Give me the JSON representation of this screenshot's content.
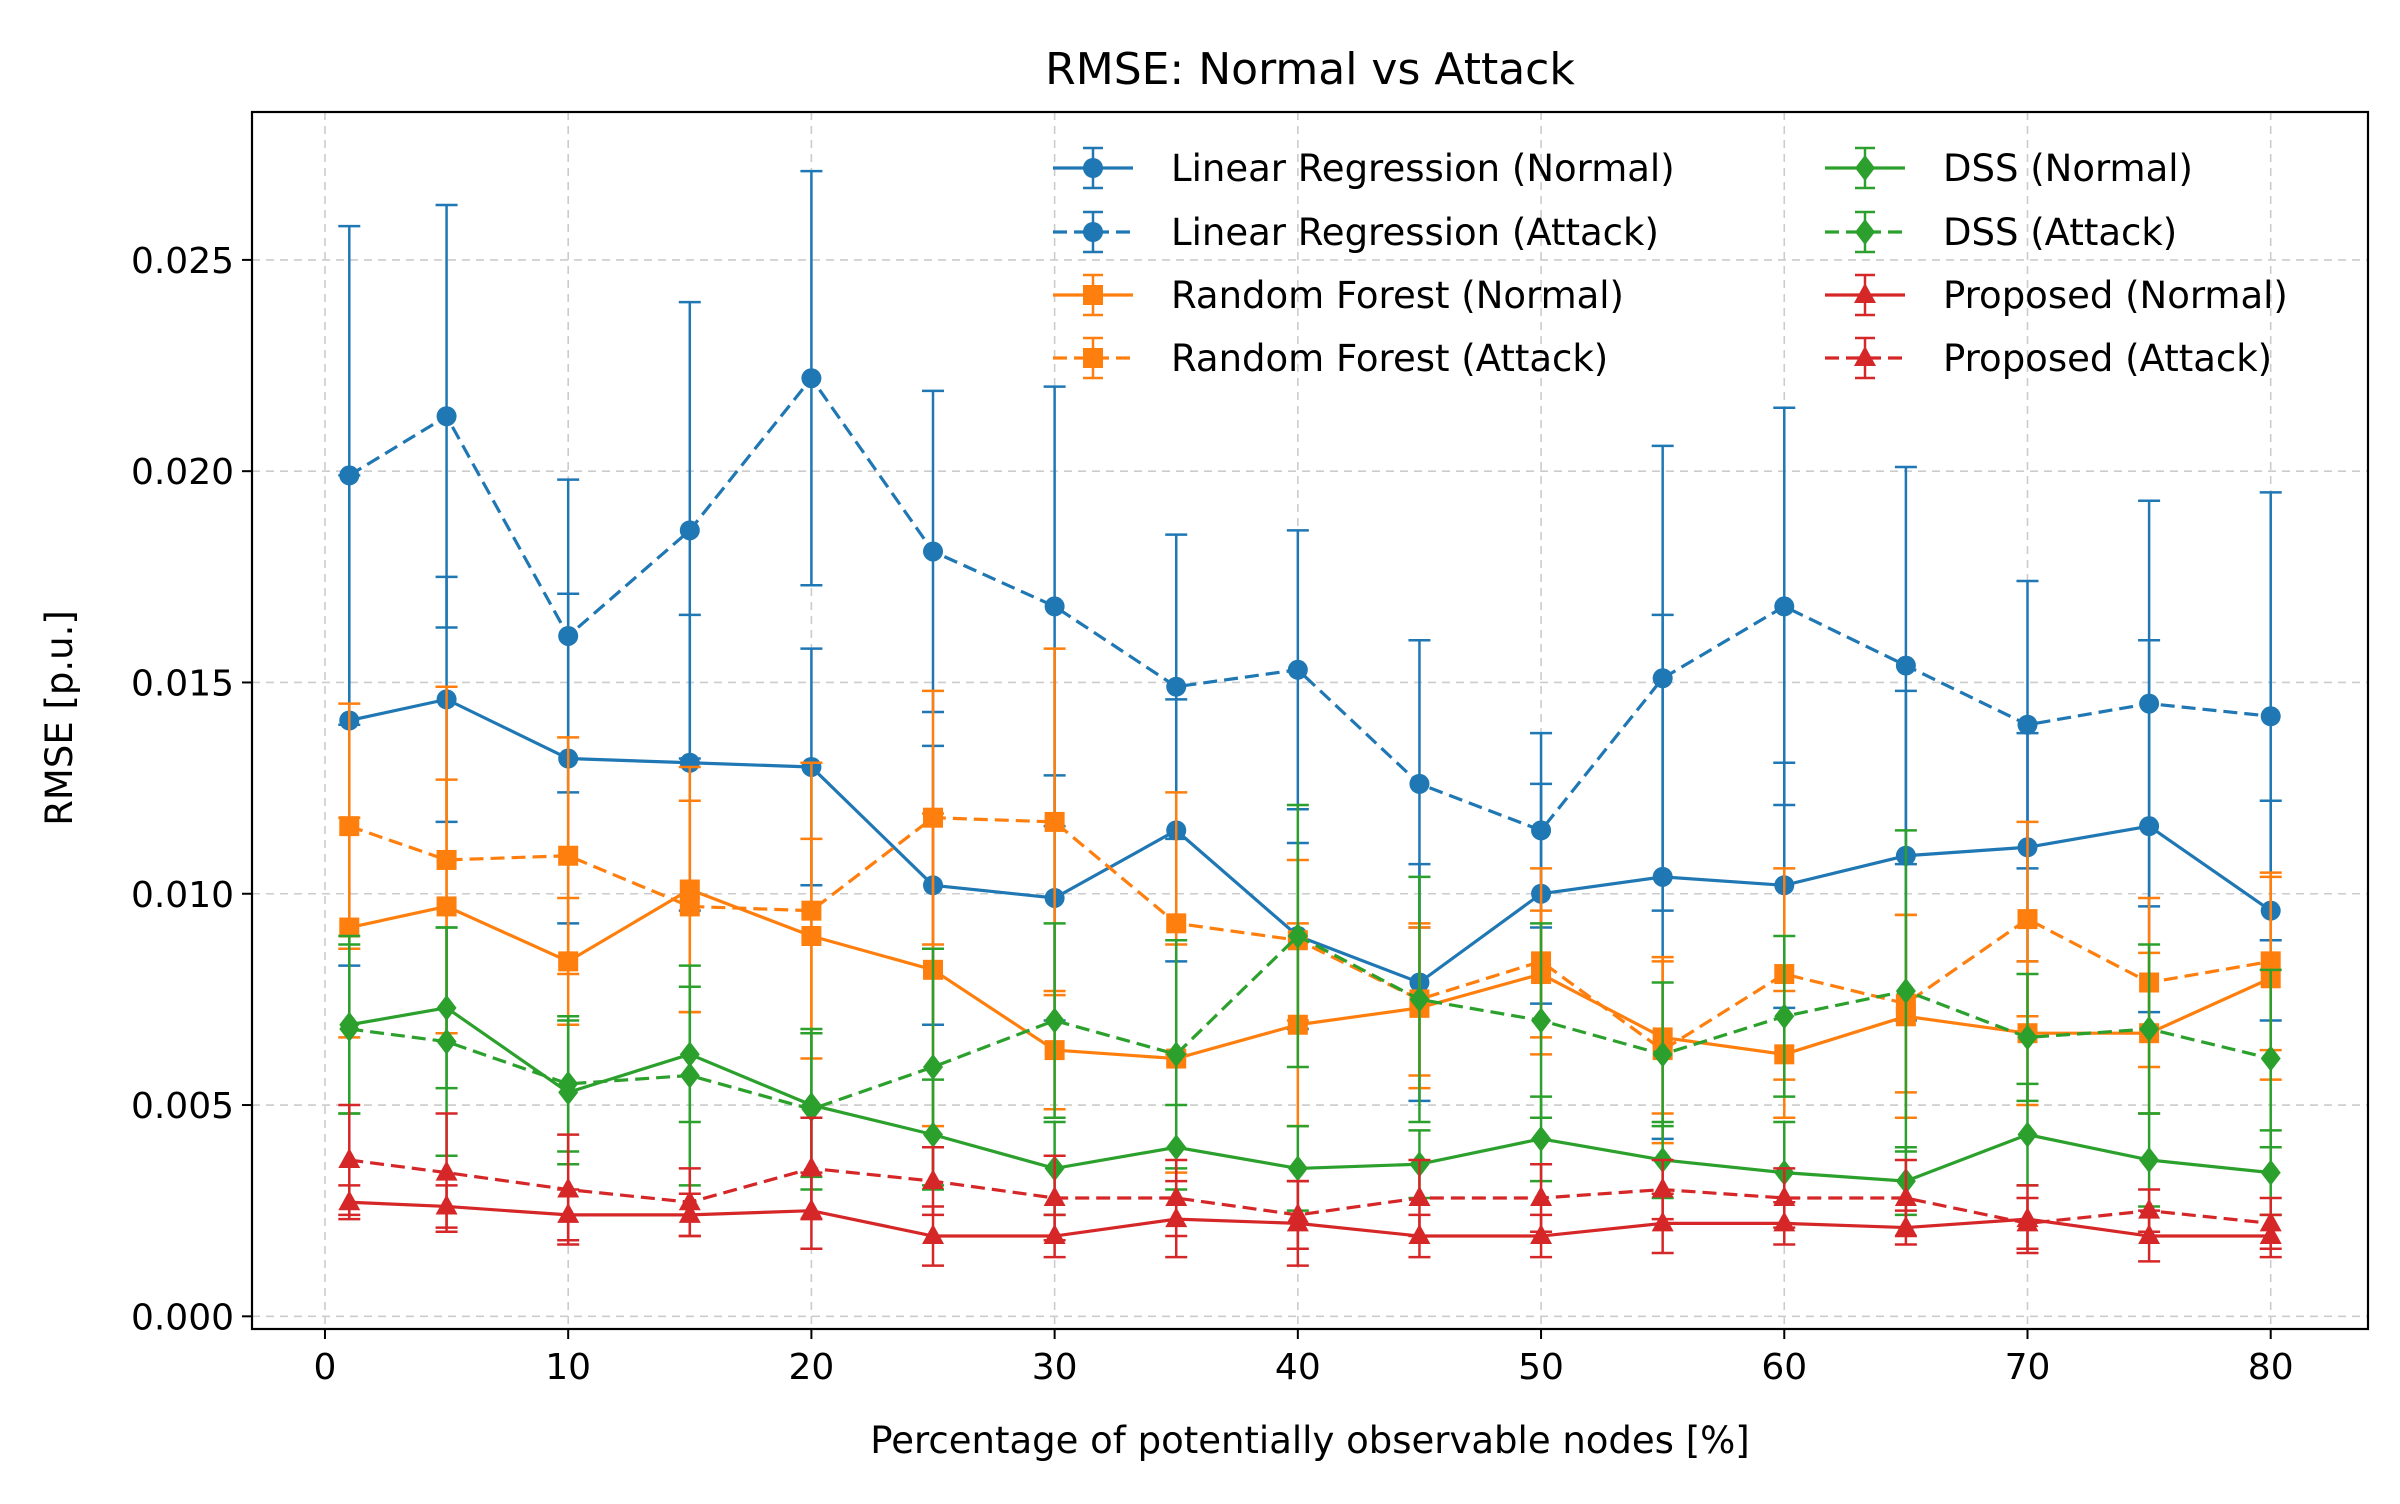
{
  "chart_data": {
    "type": "line",
    "title": "RMSE: Normal vs Attack",
    "xlabel": "Percentage of potentially observable nodes [%]",
    "ylabel": "RMSE [p.u.]",
    "xlim": [
      -3,
      84
    ],
    "ylim": [
      -0.0003,
      0.0285
    ],
    "xticks": [
      0,
      10,
      20,
      30,
      40,
      50,
      60,
      70,
      80
    ],
    "yticks": [
      0.0,
      0.005,
      0.01,
      0.015,
      0.02,
      0.025
    ],
    "xtick_labels": [
      "0",
      "10",
      "20",
      "30",
      "40",
      "50",
      "60",
      "70",
      "80"
    ],
    "ytick_labels": [
      "0.000",
      "0.005",
      "0.010",
      "0.015",
      "0.020",
      "0.025"
    ],
    "grid": true,
    "legend_position": "top-right",
    "x": [
      1,
      5,
      10,
      15,
      20,
      25,
      30,
      35,
      40,
      45,
      50,
      55,
      60,
      65,
      70,
      75,
      80
    ],
    "series": [
      {
        "name": "Linear Regression (Normal)",
        "color": "#1f77b4",
        "line": "solid",
        "marker": "circle",
        "values": [
          0.0141,
          0.0146,
          0.0132,
          0.0131,
          0.013,
          0.0102,
          0.0099,
          0.0115,
          0.009,
          0.0079,
          0.01,
          0.0104,
          0.0102,
          0.0109,
          0.0111,
          0.0116,
          0.0096
        ],
        "errors": [
          0.0058,
          0.0029,
          0.0039,
          0.0035,
          0.0028,
          0.0033,
          0.0029,
          0.0031,
          0.0022,
          0.0028,
          0.0026,
          0.0062,
          0.0029,
          0.0039,
          0.0027,
          0.0044,
          0.0026
        ]
      },
      {
        "name": "Linear Regression (Attack)",
        "color": "#1f77b4",
        "line": "dashed",
        "marker": "circle",
        "values": [
          0.0199,
          0.0213,
          0.0161,
          0.0186,
          0.0222,
          0.0181,
          0.0168,
          0.0149,
          0.0153,
          0.0126,
          0.0115,
          0.0151,
          0.0168,
          0.0154,
          0.014,
          0.0145,
          0.0142
        ],
        "errors": [
          0.0059,
          0.005,
          0.0037,
          0.0054,
          0.0049,
          0.0038,
          0.0052,
          0.0036,
          0.0033,
          0.0034,
          0.0023,
          0.0055,
          0.0047,
          0.0047,
          0.0034,
          0.0048,
          0.0053
        ]
      },
      {
        "name": "Random Forest (Normal)",
        "color": "#ff7f0e",
        "line": "solid",
        "marker": "square",
        "values": [
          0.0092,
          0.0097,
          0.0084,
          0.0101,
          0.009,
          0.0082,
          0.0063,
          0.0061,
          0.0069,
          0.0073,
          0.0081,
          0.0066,
          0.0062,
          0.0071,
          0.0067,
          0.0067,
          0.008
        ],
        "errors": [
          0.0026,
          0.003,
          0.0015,
          0.0029,
          0.0023,
          0.0037,
          0.0014,
          0.0027,
          0.0024,
          0.0019,
          0.0015,
          0.0018,
          0.0015,
          0.0024,
          0.0017,
          0.0019,
          0.0024
        ]
      },
      {
        "name": "Random Forest (Attack)",
        "color": "#ff7f0e",
        "line": "dashed",
        "marker": "square",
        "values": [
          0.0116,
          0.0108,
          0.0109,
          0.0097,
          0.0096,
          0.0118,
          0.0117,
          0.0093,
          0.0089,
          0.0075,
          0.0084,
          0.0063,
          0.0081,
          0.0074,
          0.0094,
          0.0079,
          0.0084
        ],
        "errors": [
          0.0029,
          0.0041,
          0.0028,
          0.0025,
          0.0035,
          0.003,
          0.0041,
          0.0031,
          0.0019,
          0.0018,
          0.0022,
          0.0022,
          0.0025,
          0.0021,
          0.0023,
          0.002,
          0.0021
        ]
      },
      {
        "name": "DSS (Normal)",
        "color": "#2ca02c",
        "line": "solid",
        "marker": "diamond",
        "values": [
          0.0069,
          0.0073,
          0.0053,
          0.0062,
          0.005,
          0.0043,
          0.0035,
          0.004,
          0.0035,
          0.0036,
          0.0042,
          0.0037,
          0.0034,
          0.0032,
          0.0043,
          0.0037,
          0.0034
        ],
        "errors": [
          0.0021,
          0.0019,
          0.0017,
          0.0016,
          0.0017,
          0.0013,
          0.0011,
          0.001,
          0.001,
          0.0008,
          0.001,
          0.0009,
          0.0012,
          0.0008,
          0.0012,
          0.0011,
          0.001
        ]
      },
      {
        "name": "DSS (Attack)",
        "color": "#2ca02c",
        "line": "dashed",
        "marker": "diamond",
        "values": [
          0.0068,
          0.0065,
          0.0055,
          0.0057,
          0.0049,
          0.0059,
          0.007,
          0.0062,
          0.009,
          0.0075,
          0.007,
          0.0062,
          0.0071,
          0.0077,
          0.0066,
          0.0068,
          0.0061
        ],
        "errors": [
          0.002,
          0.0027,
          0.0016,
          0.0026,
          0.0019,
          0.0028,
          0.0023,
          0.0027,
          0.0031,
          0.0029,
          0.0023,
          0.0017,
          0.0019,
          0.0038,
          0.0015,
          0.002,
          0.0021
        ]
      },
      {
        "name": "Proposed (Normal)",
        "color": "#d62728",
        "line": "solid",
        "marker": "triangle",
        "values": [
          0.0027,
          0.0026,
          0.0024,
          0.0024,
          0.0025,
          0.0019,
          0.0019,
          0.0023,
          0.0022,
          0.0019,
          0.0019,
          0.0022,
          0.0022,
          0.0021,
          0.0023,
          0.0019,
          0.0019
        ],
        "errors": [
          0.0004,
          0.0005,
          0.0006,
          0.0005,
          0.0009,
          0.0007,
          0.0005,
          0.0009,
          0.001,
          0.0005,
          0.0005,
          0.0007,
          0.0005,
          0.0004,
          0.0008,
          0.0006,
          0.0005
        ]
      },
      {
        "name": "Proposed (Attack)",
        "color": "#d62728",
        "line": "dashed",
        "marker": "triangle",
        "values": [
          0.0037,
          0.0034,
          0.003,
          0.0027,
          0.0035,
          0.0032,
          0.0028,
          0.0028,
          0.0024,
          0.0028,
          0.0028,
          0.003,
          0.0028,
          0.0028,
          0.0022,
          0.0025,
          0.0022
        ],
        "errors": [
          0.0013,
          0.0014,
          0.0013,
          0.0008,
          0.0012,
          0.0008,
          0.001,
          0.0009,
          0.0008,
          0.0009,
          0.0008,
          0.0007,
          0.0007,
          0.0009,
          0.0006,
          0.0005,
          0.0006
        ]
      }
    ]
  }
}
